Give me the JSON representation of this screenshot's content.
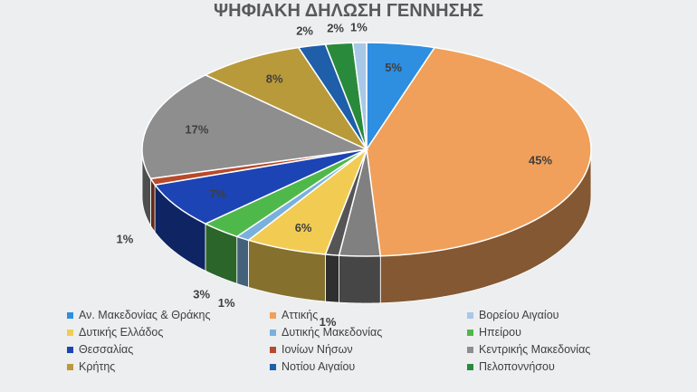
{
  "chart_data": {
    "type": "pie",
    "title": "ΨΗΦΙΑΚΗ ΔΗΛΩΣΗ ΓΕΝΝΗΣΗΣ",
    "style": "3d",
    "legend_position": "bottom",
    "series": [
      {
        "name": "Αν. Μακεδονίας & Θράκης",
        "color": "#2e8ee0"
      },
      {
        "name": "Αττικής",
        "color": "#f0a05a"
      },
      {
        "name": "Βορείου Αιγαίου",
        "color": "#a8c8e8"
      },
      {
        "name": "Δυτικής Ελλάδος",
        "color": "#f2cc52"
      },
      {
        "name": "Δυτικής Μακεδονίας",
        "color": "#7ab0de"
      },
      {
        "name": "Ηπείρου",
        "color": "#4fb84a"
      },
      {
        "name": "Θεσσαλίας",
        "color": "#1c44b4"
      },
      {
        "name": "Ιονίων Νήσων",
        "color": "#b84a2a"
      },
      {
        "name": "Κεντρικής Μακεδονίας",
        "color": "#8e8e8e"
      },
      {
        "name": "Κρήτης",
        "color": "#b99a3a"
      },
      {
        "name": "Νοτίου Αιγαίου",
        "color": "#1f5ea8"
      },
      {
        "name": "Πελοποννήσου",
        "color": "#2a8a3c"
      }
    ],
    "slices": [
      {
        "value": 5,
        "label": "5%",
        "color": "#2e8ee0"
      },
      {
        "value": 45,
        "label": "45%",
        "color": "#f0a05a"
      },
      {
        "value": 3,
        "label": "",
        "color": "#808080"
      },
      {
        "value": 1,
        "label": "1%",
        "color": "#555555"
      },
      {
        "value": 6,
        "label": "6%",
        "color": "#f2cc52"
      },
      {
        "value": 1,
        "label": "1%",
        "color": "#7ab0de"
      },
      {
        "value": 3,
        "label": "3%",
        "color": "#4fb84a"
      },
      {
        "value": 7,
        "label": "7%",
        "color": "#1c44b4"
      },
      {
        "value": 1,
        "label": "1%",
        "color": "#b84a2a"
      },
      {
        "value": 17,
        "label": "17%",
        "color": "#8e8e8e"
      },
      {
        "value": 8,
        "label": "8%",
        "color": "#b99a3a"
      },
      {
        "value": 2,
        "label": "2%",
        "color": "#1f5ea8"
      },
      {
        "value": 2,
        "label": "2%",
        "color": "#2a8a3c"
      },
      {
        "value": 1,
        "label": "1%",
        "color": "#a8c8e8"
      }
    ]
  }
}
